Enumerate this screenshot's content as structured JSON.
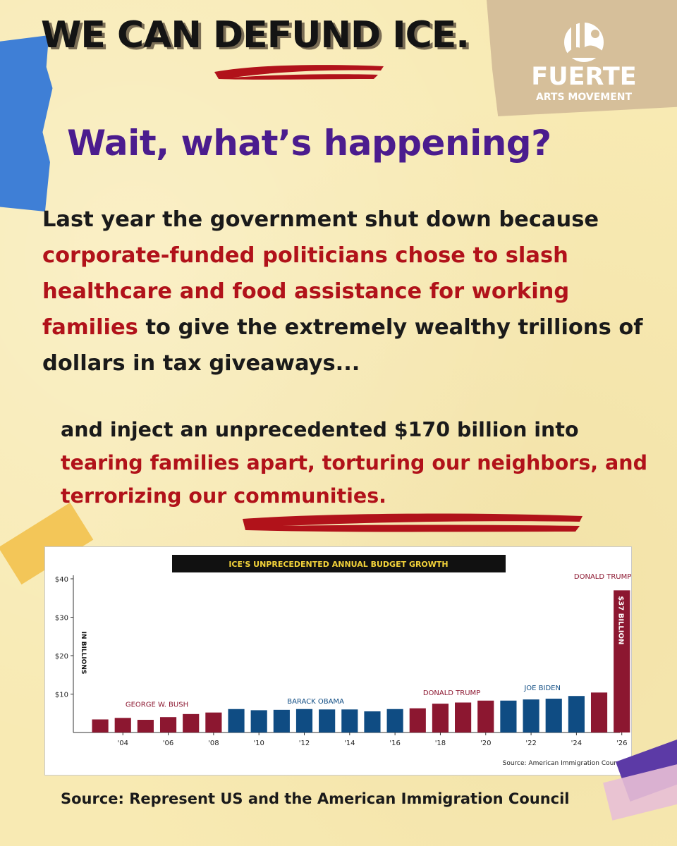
{
  "header": {
    "title": "WE CAN DEFUND ICE.",
    "subtitle": "Wait, what’s happening?"
  },
  "logo": {
    "name": "FUERTE",
    "tagline": "ARTS MOVEMENT"
  },
  "body": {
    "para1": {
      "part1": "Last year the government shut down because ",
      "part2": "corporate-funded politicians chose to slash healthcare and food assistance for working families",
      "part3": " to give the extremely wealthy trillions of dollars in tax giveaways..."
    },
    "para2": {
      "part1": "and inject an unprecedented $170 billion into ",
      "part2": "tearing families apart, torturing our neighbors, and terrorizing our communities."
    }
  },
  "chart_data": {
    "type": "bar",
    "title": "ICE'S UNPRECEDENTED ANNUAL BUDGET GROWTH",
    "ylabel": "IN BILLIONS",
    "ylim": [
      0,
      40
    ],
    "yticks": [
      "$10",
      "$20",
      "$30",
      "$40"
    ],
    "x_ticks": [
      "'04",
      "'06",
      "'08",
      "'10",
      "'12",
      "'14",
      "'16",
      "'18",
      "'20",
      "'22",
      "'24",
      "'26"
    ],
    "years": [
      2003,
      2004,
      2005,
      2006,
      2007,
      2008,
      2009,
      2010,
      2011,
      2012,
      2013,
      2014,
      2015,
      2016,
      2017,
      2018,
      2019,
      2020,
      2021,
      2022,
      2023,
      2024,
      2025,
      2026
    ],
    "values": [
      3.4,
      3.8,
      3.3,
      4.0,
      4.8,
      5.2,
      6.1,
      5.8,
      5.9,
      6.1,
      6.0,
      6.0,
      5.5,
      6.1,
      6.3,
      7.5,
      7.8,
      8.3,
      8.3,
      8.6,
      8.8,
      9.5,
      10.4,
      37.0
    ],
    "series_colors": {
      "republican": "#8c1730",
      "democrat": "#0f4c83"
    },
    "administrations": [
      {
        "label": "GEORGE W. BUSH",
        "party": "republican",
        "from": 2003,
        "to": 2008
      },
      {
        "label": "BARACK OBAMA",
        "party": "democrat",
        "from": 2009,
        "to": 2016
      },
      {
        "label": "DONALD TRUMP",
        "party": "republican",
        "from": 2017,
        "to": 2020
      },
      {
        "label": "JOE BIDEN",
        "party": "democrat",
        "from": 2021,
        "to": 2024
      },
      {
        "label": "DONALD TRUMP",
        "party": "republican",
        "from": 2025,
        "to": 2026
      }
    ],
    "annotation": "$37 BILLION",
    "source": "Source: American Immigration Council"
  },
  "footer": {
    "source": "Source: Represent US and the American Immigration Council"
  }
}
